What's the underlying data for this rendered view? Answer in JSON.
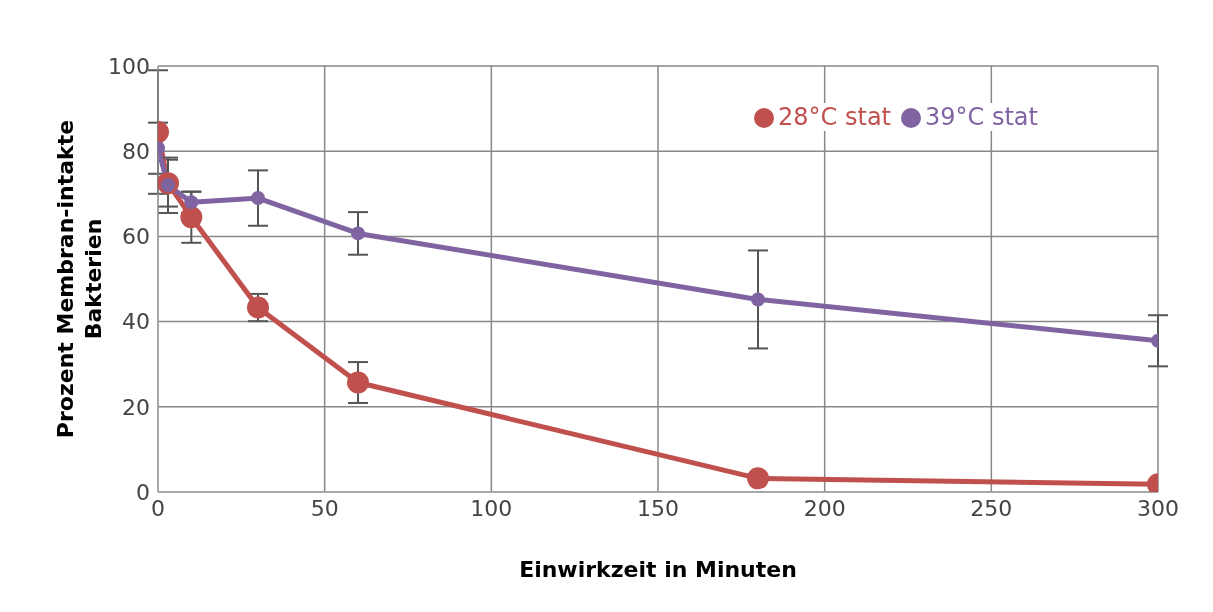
{
  "chart_data": {
    "type": "line",
    "xlabel": "Einwirkzeit in Minuten",
    "ylabel": "Prozent Membran-intakte Bakterien",
    "x": [
      0,
      3,
      10,
      30,
      60,
      180,
      300
    ],
    "series": [
      {
        "name": "28°C stat",
        "color": "#c0504d",
        "values": [
          84.5,
          72.5,
          64.5,
          43.3,
          25.7,
          3.2,
          1.8
        ],
        "errors": [
          14.5,
          5.5,
          6,
          3.2,
          4.8,
          null,
          null
        ]
      },
      {
        "name": "39°C stat",
        "color": "#8064a2",
        "values": [
          80.7,
          72,
          68,
          69,
          60.7,
          45.2,
          35.5
        ],
        "errors": [
          6,
          6.5,
          2.5,
          6.5,
          5,
          11.5,
          6
        ]
      }
    ],
    "xlim": [
      0,
      300
    ],
    "xticks": [
      0,
      50,
      100,
      150,
      200,
      250,
      300
    ],
    "ylim": [
      0,
      100
    ],
    "yticks": [
      0,
      20,
      40,
      60,
      80,
      100
    ],
    "grid": true,
    "legend": "top right",
    "marker": "circle",
    "line_style": "solid"
  }
}
